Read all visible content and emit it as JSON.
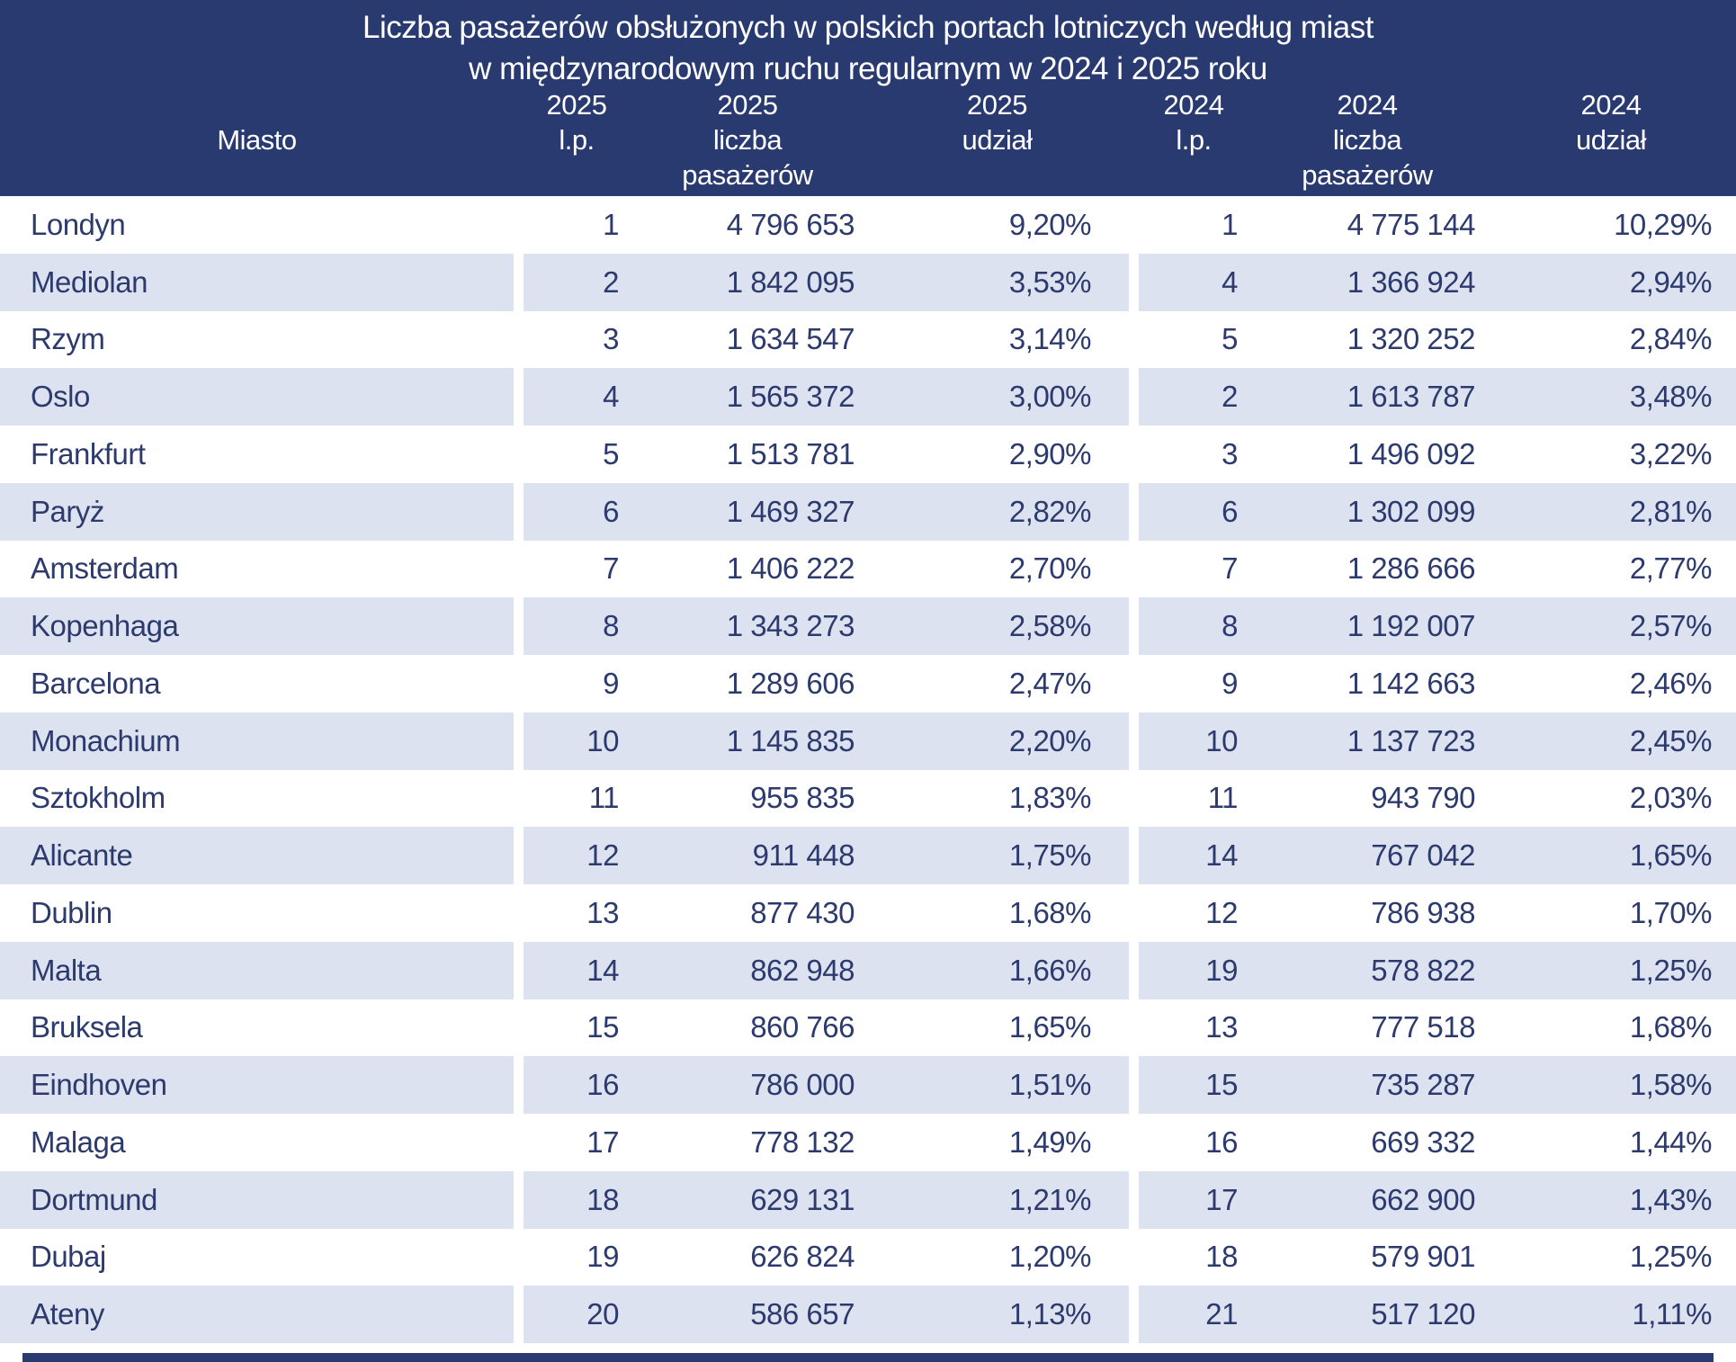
{
  "header": {
    "title_line1": "Liczba pasażerów obsłużonych w polskich portach lotniczych według miast",
    "title_line2": "w międzynarodowym ruchu regularnym w 2024 i 2025 roku",
    "columns": {
      "city": {
        "l1": "",
        "l2": "Miasto",
        "l3": ""
      },
      "lp25": {
        "l1": "2025",
        "l2": "l.p.",
        "l3": ""
      },
      "n25": {
        "l1": "2025",
        "l2": "liczba",
        "l3": "pasażerów"
      },
      "u25": {
        "l1": "2025",
        "l2": "udział",
        "l3": ""
      },
      "lp24": {
        "l1": "2024",
        "l2": "l.p.",
        "l3": ""
      },
      "n24": {
        "l1": "2024",
        "l2": "liczba",
        "l3": "pasażerów"
      },
      "u24": {
        "l1": "2024",
        "l2": "udział",
        "l3": ""
      }
    }
  },
  "colors": {
    "header_bg": "#293a70",
    "alt_row_bg": "#dde2f1",
    "text": "#2c3a6d"
  },
  "rows": [
    {
      "city": "Londyn",
      "lp25": "1",
      "n25": "4 796 653",
      "u25": "9,20%",
      "lp24": "1",
      "n24": "4 775 144",
      "u24": "10,29%"
    },
    {
      "city": "Mediolan",
      "lp25": "2",
      "n25": "1 842 095",
      "u25": "3,53%",
      "lp24": "4",
      "n24": "1 366 924",
      "u24": "2,94%"
    },
    {
      "city": "Rzym",
      "lp25": "3",
      "n25": "1 634 547",
      "u25": "3,14%",
      "lp24": "5",
      "n24": "1 320 252",
      "u24": "2,84%"
    },
    {
      "city": "Oslo",
      "lp25": "4",
      "n25": "1 565 372",
      "u25": "3,00%",
      "lp24": "2",
      "n24": "1 613 787",
      "u24": "3,48%"
    },
    {
      "city": "Frankfurt",
      "lp25": "5",
      "n25": "1 513 781",
      "u25": "2,90%",
      "lp24": "3",
      "n24": "1 496 092",
      "u24": "3,22%"
    },
    {
      "city": "Paryż",
      "lp25": "6",
      "n25": "1 469 327",
      "u25": "2,82%",
      "lp24": "6",
      "n24": "1 302 099",
      "u24": "2,81%"
    },
    {
      "city": "Amsterdam",
      "lp25": "7",
      "n25": "1 406 222",
      "u25": "2,70%",
      "lp24": "7",
      "n24": "1 286 666",
      "u24": "2,77%"
    },
    {
      "city": "Kopenhaga",
      "lp25": "8",
      "n25": "1 343 273",
      "u25": "2,58%",
      "lp24": "8",
      "n24": "1 192 007",
      "u24": "2,57%"
    },
    {
      "city": "Barcelona",
      "lp25": "9",
      "n25": "1 289 606",
      "u25": "2,47%",
      "lp24": "9",
      "n24": "1 142 663",
      "u24": "2,46%"
    },
    {
      "city": "Monachium",
      "lp25": "10",
      "n25": "1 145 835",
      "u25": "2,20%",
      "lp24": "10",
      "n24": "1 137 723",
      "u24": "2,45%"
    },
    {
      "city": "Sztokholm",
      "lp25": "11",
      "n25": "955 835",
      "u25": "1,83%",
      "lp24": "11",
      "n24": "943 790",
      "u24": "2,03%"
    },
    {
      "city": "Alicante",
      "lp25": "12",
      "n25": "911 448",
      "u25": "1,75%",
      "lp24": "14",
      "n24": "767 042",
      "u24": "1,65%"
    },
    {
      "city": "Dublin",
      "lp25": "13",
      "n25": "877 430",
      "u25": "1,68%",
      "lp24": "12",
      "n24": "786 938",
      "u24": "1,70%"
    },
    {
      "city": "Malta",
      "lp25": "14",
      "n25": "862 948",
      "u25": "1,66%",
      "lp24": "19",
      "n24": "578 822",
      "u24": "1,25%"
    },
    {
      "city": "Bruksela",
      "lp25": "15",
      "n25": "860 766",
      "u25": "1,65%",
      "lp24": "13",
      "n24": "777 518",
      "u24": "1,68%"
    },
    {
      "city": "Eindhoven",
      "lp25": "16",
      "n25": "786 000",
      "u25": "1,51%",
      "lp24": "15",
      "n24": "735 287",
      "u24": "1,58%"
    },
    {
      "city": "Malaga",
      "lp25": "17",
      "n25": "778 132",
      "u25": "1,49%",
      "lp24": "16",
      "n24": "669 332",
      "u24": "1,44%"
    },
    {
      "city": "Dortmund",
      "lp25": "18",
      "n25": "629 131",
      "u25": "1,21%",
      "lp24": "17",
      "n24": "662 900",
      "u24": "1,43%"
    },
    {
      "city": "Dubaj",
      "lp25": "19",
      "n25": "626 824",
      "u25": "1,20%",
      "lp24": "18",
      "n24": "579 901",
      "u24": "1,25%"
    },
    {
      "city": "Ateny",
      "lp25": "20",
      "n25": "586 657",
      "u25": "1,13%",
      "lp24": "21",
      "n24": "517 120",
      "u24": "1,11%"
    }
  ],
  "chart_data": {
    "type": "table",
    "title": "Liczba pasażerów obsłużonych w polskich portach lotniczych według miast w międzynarodowym ruchu regularnym w 2024 i 2025 roku",
    "columns": [
      "Miasto",
      "2025 l.p.",
      "2025 liczba pasażerów",
      "2025 udział",
      "2024 l.p.",
      "2024 liczba pasażerów",
      "2024 udział"
    ],
    "rows": [
      [
        "Londyn",
        1,
        4796653,
        "9,20%",
        1,
        4775144,
        "10,29%"
      ],
      [
        "Mediolan",
        2,
        1842095,
        "3,53%",
        4,
        1366924,
        "2,94%"
      ],
      [
        "Rzym",
        3,
        1634547,
        "3,14%",
        5,
        1320252,
        "2,84%"
      ],
      [
        "Oslo",
        4,
        1565372,
        "3,00%",
        2,
        1613787,
        "3,48%"
      ],
      [
        "Frankfurt",
        5,
        1513781,
        "2,90%",
        3,
        1496092,
        "3,22%"
      ],
      [
        "Paryż",
        6,
        1469327,
        "2,82%",
        6,
        1302099,
        "2,81%"
      ],
      [
        "Amsterdam",
        7,
        1406222,
        "2,70%",
        7,
        1286666,
        "2,77%"
      ],
      [
        "Kopenhaga",
        8,
        1343273,
        "2,58%",
        8,
        1192007,
        "2,57%"
      ],
      [
        "Barcelona",
        9,
        1289606,
        "2,47%",
        9,
        1142663,
        "2,46%"
      ],
      [
        "Monachium",
        10,
        1145835,
        "2,20%",
        10,
        1137723,
        "2,45%"
      ],
      [
        "Sztokholm",
        11,
        955835,
        "1,83%",
        11,
        943790,
        "2,03%"
      ],
      [
        "Alicante",
        12,
        911448,
        "1,75%",
        14,
        767042,
        "1,65%"
      ],
      [
        "Dublin",
        13,
        877430,
        "1,68%",
        12,
        786938,
        "1,70%"
      ],
      [
        "Malta",
        14,
        862948,
        "1,66%",
        19,
        578822,
        "1,25%"
      ],
      [
        "Bruksela",
        15,
        860766,
        "1,65%",
        13,
        777518,
        "1,68%"
      ],
      [
        "Eindhoven",
        16,
        786000,
        "1,51%",
        15,
        735287,
        "1,58%"
      ],
      [
        "Malaga",
        17,
        778132,
        "1,49%",
        16,
        669332,
        "1,44%"
      ],
      [
        "Dortmund",
        18,
        629131,
        "1,21%",
        17,
        662900,
        "1,43%"
      ],
      [
        "Dubaj",
        19,
        626824,
        "1,20%",
        18,
        579901,
        "1,25%"
      ],
      [
        "Ateny",
        20,
        586657,
        "1,13%",
        21,
        517120,
        "1,11%"
      ]
    ],
    "layout": {
      "alternating_row_shading": true,
      "column_groups": [
        "Miasto",
        "2025",
        "2024"
      ],
      "legend_position": "none",
      "grid": false
    }
  }
}
